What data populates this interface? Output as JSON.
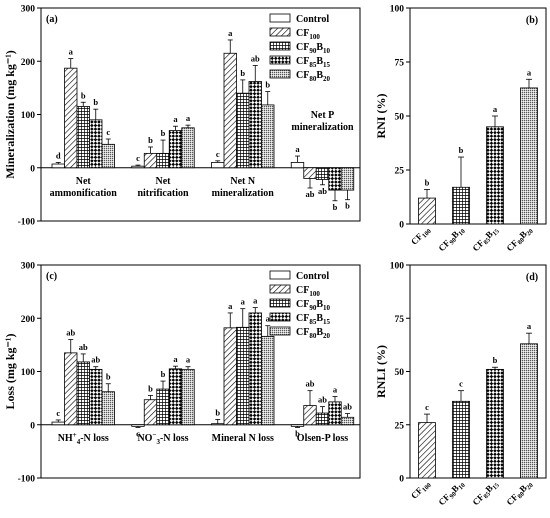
{
  "legend": {
    "entries": [
      {
        "base": "Control",
        "sub": ""
      },
      {
        "base": "CF",
        "sub": "100"
      },
      {
        "base": "CF",
        "sub": "90",
        "base2": "B",
        "sub2": "10"
      },
      {
        "base": "CF",
        "sub": "85",
        "base2": "B",
        "sub2": "15"
      },
      {
        "base": "CF",
        "sub": "80",
        "base2": "B",
        "sub2": "20"
      }
    ]
  },
  "chart_data": [
    {
      "panel": "(a)",
      "type": "bar",
      "ylabel": "Mineralization (mg kg⁻¹)",
      "ylim": [
        -100,
        300
      ],
      "yticks": [
        "-100",
        "0",
        "100",
        "200",
        "300"
      ],
      "legend_position": "top-right",
      "categories": [
        "Net ammonification",
        "Net nitrification",
        "Net N mineralization",
        "Net P mineralization"
      ],
      "category_labels": [
        [
          "Net",
          "ammonification"
        ],
        [
          "Net",
          "nitrification"
        ],
        [
          "Net N",
          "mineralization"
        ],
        [
          "Net P",
          "mineralization"
        ]
      ],
      "series": [
        {
          "name": "Control",
          "values": [
            7,
            3,
            10,
            10
          ],
          "errors": [
            3,
            2,
            3,
            12
          ],
          "letters": [
            "d",
            "c",
            "c",
            "a"
          ]
        },
        {
          "name": "CF100",
          "values": [
            187,
            27,
            215,
            -20
          ],
          "errors": [
            18,
            12,
            25,
            18
          ],
          "letters": [
            "a",
            "b",
            "a",
            "ab"
          ]
        },
        {
          "name": "CF90B10",
          "values": [
            115,
            27,
            140,
            -22
          ],
          "errors": [
            8,
            25,
            25,
            10
          ],
          "letters": [
            "b",
            "b",
            "b",
            "ab"
          ]
        },
        {
          "name": "CF85B15",
          "values": [
            90,
            70,
            162,
            -42
          ],
          "errors": [
            20,
            8,
            30,
            20
          ],
          "letters": [
            "b",
            "a",
            "ab",
            "b"
          ]
        },
        {
          "name": "CF80B20",
          "values": [
            44,
            75,
            118,
            -42
          ],
          "errors": [
            10,
            5,
            25,
            18
          ],
          "letters": [
            "c",
            "a",
            "b",
            "b"
          ]
        }
      ]
    },
    {
      "panel": "(b)",
      "type": "bar",
      "ylabel": "RNI (%)",
      "ylim": [
        0,
        100
      ],
      "yticks": [
        "0",
        "25",
        "50",
        "75",
        "100"
      ],
      "categories": [
        {
          "base": "CF",
          "sub": "100"
        },
        {
          "base": "CF",
          "sub": "90",
          "base2": "B",
          "sub2": "10"
        },
        {
          "base": "CF",
          "sub": "85",
          "base2": "B",
          "sub2": "15"
        },
        {
          "base": "CF",
          "sub": "80",
          "base2": "B",
          "sub2": "20"
        }
      ],
      "values": [
        12,
        17,
        45,
        63
      ],
      "errors": [
        4,
        14,
        5,
        4
      ],
      "letters": [
        "b",
        "b",
        "a",
        "a"
      ]
    },
    {
      "panel": "(c)",
      "type": "bar",
      "ylabel": "Loss (mg kg⁻¹)",
      "ylim": [
        -100,
        300
      ],
      "yticks": [
        "-100",
        "0",
        "100",
        "200",
        "300"
      ],
      "legend_position": "top-right",
      "categories": [
        "NH4+-N loss",
        "NO3−-N loss",
        "Mineral N loss",
        "Olsen-P loss"
      ],
      "category_labels": [
        {
          "base": "NH",
          "sub": "4",
          "sup": "+",
          "rest": "-N loss"
        },
        {
          "base": "NO",
          "sub": "3",
          "sup": "−",
          "rest": "-N loss"
        },
        {
          "base": "Mineral N loss"
        },
        {
          "base": "Olsen-P loss"
        }
      ],
      "series": [
        {
          "name": "Control",
          "values": [
            5,
            -3,
            2,
            -3
          ],
          "errors": [
            4,
            2,
            8,
            2
          ],
          "letters": [
            "c",
            "c",
            "b",
            "b"
          ]
        },
        {
          "name": "CF100",
          "values": [
            135,
            47,
            182,
            36
          ],
          "errors": [
            25,
            8,
            28,
            28
          ],
          "letters": [
            "ab",
            "b",
            "a",
            "ab"
          ]
        },
        {
          "name": "CF90B10",
          "values": [
            118,
            67,
            183,
            22
          ],
          "errors": [
            15,
            15,
            35,
            12
          ],
          "letters": [
            "ab",
            "b",
            "a",
            "ab"
          ]
        },
        {
          "name": "CF85B15",
          "values": [
            104,
            105,
            210,
            43
          ],
          "errors": [
            5,
            5,
            10,
            10
          ],
          "letters": [
            "ab",
            "a",
            "a",
            "a"
          ]
        },
        {
          "name": "CF80B20",
          "values": [
            62,
            104,
            166,
            14
          ],
          "errors": [
            15,
            5,
            20,
            7
          ],
          "letters": [
            "b",
            "a",
            "a",
            "ab"
          ]
        }
      ]
    },
    {
      "panel": "(d)",
      "type": "bar",
      "ylabel": "RNLI (%)",
      "ylim": [
        0,
        100
      ],
      "yticks": [
        "0",
        "25",
        "50",
        "75",
        "100"
      ],
      "categories": [
        {
          "base": "CF",
          "sub": "100"
        },
        {
          "base": "CF",
          "sub": "90",
          "base2": "B",
          "sub2": "10"
        },
        {
          "base": "CF",
          "sub": "85",
          "base2": "B",
          "sub2": "15"
        },
        {
          "base": "CF",
          "sub": "80",
          "base2": "B",
          "sub2": "20"
        }
      ],
      "values": [
        26,
        36,
        51,
        63
      ],
      "errors": [
        4,
        5,
        1,
        5
      ],
      "letters": [
        "c",
        "c",
        "b",
        "a"
      ]
    }
  ]
}
